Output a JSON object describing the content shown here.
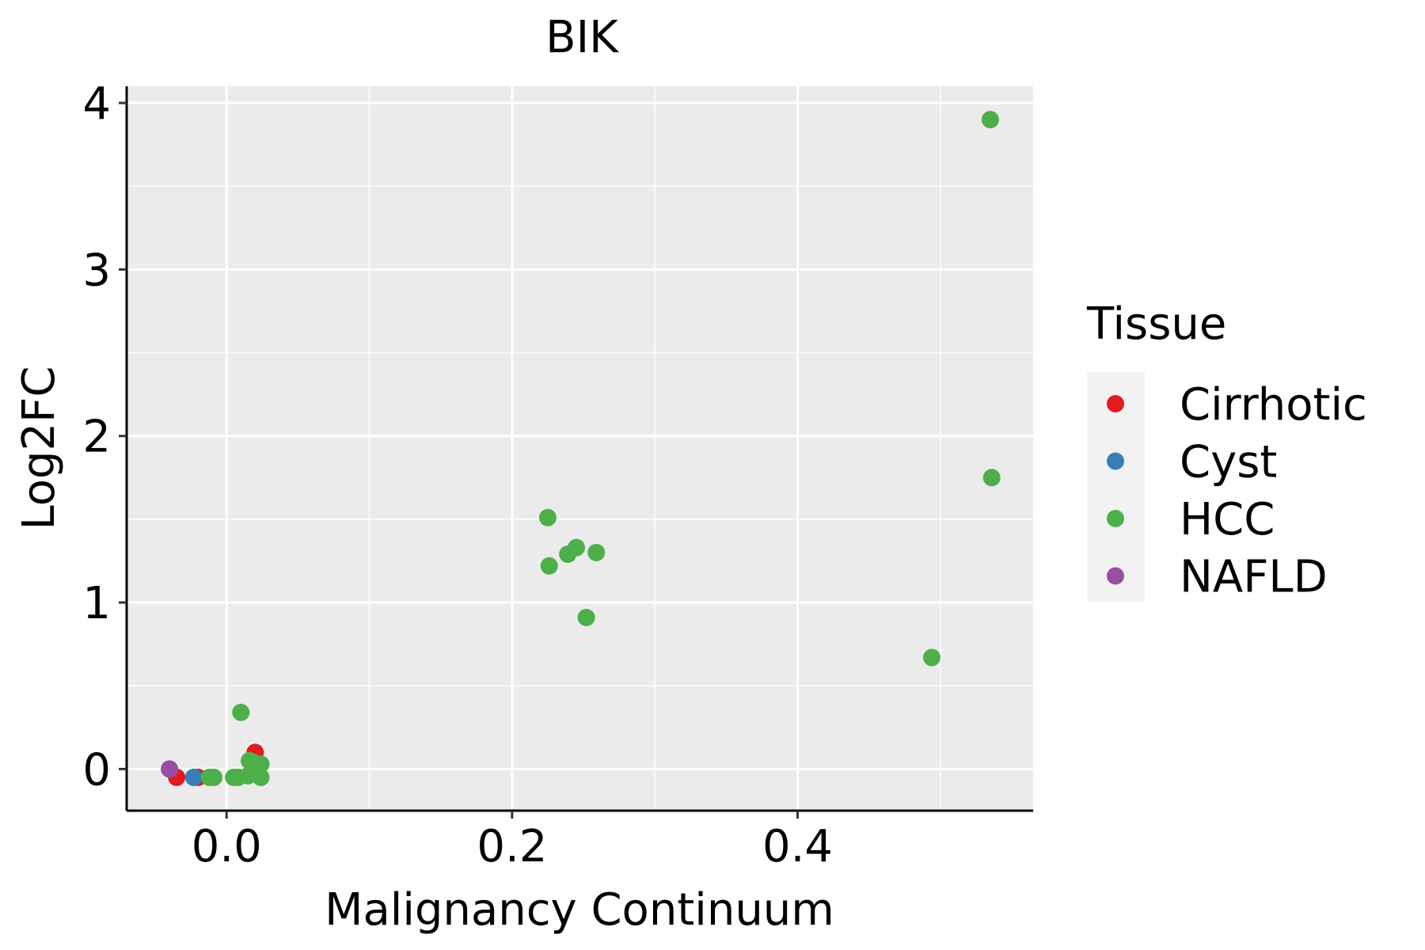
{
  "chart_data": {
    "type": "scatter",
    "title": "BIK",
    "xlabel": "Malignancy Continuum",
    "ylabel": "Log2FC",
    "xlim": [
      -0.07,
      0.565
    ],
    "ylim": [
      -0.25,
      4.1
    ],
    "x_ticks": [
      0.0,
      0.2,
      0.4
    ],
    "x_tick_labels": [
      "0.0",
      "0.2",
      "0.4"
    ],
    "y_ticks": [
      0,
      1,
      2,
      3,
      4
    ],
    "y_tick_labels": [
      "0",
      "1",
      "2",
      "3",
      "4"
    ],
    "grid": true,
    "legend": {
      "title": "Tissue",
      "placement": "right",
      "entries": [
        {
          "label": "Cirrhotic",
          "color": "#e41a1c"
        },
        {
          "label": "Cyst",
          "color": "#377eb8"
        },
        {
          "label": "HCC",
          "color": "#4daf4a"
        },
        {
          "label": "NAFLD",
          "color": "#984ea3"
        }
      ]
    },
    "series": [
      {
        "name": "Cirrhotic",
        "color": "#e41a1c",
        "points": [
          {
            "x": -0.035,
            "y": -0.05
          },
          {
            "x": -0.02,
            "y": -0.05
          },
          {
            "x": 0.02,
            "y": 0.1
          }
        ]
      },
      {
        "name": "Cyst",
        "color": "#377eb8",
        "points": [
          {
            "x": -0.023,
            "y": -0.05
          }
        ]
      },
      {
        "name": "HCC",
        "color": "#4daf4a",
        "points": [
          {
            "x": 0.535,
            "y": 3.9
          },
          {
            "x": 0.536,
            "y": 1.75
          },
          {
            "x": 0.494,
            "y": 0.67
          },
          {
            "x": 0.225,
            "y": 1.51
          },
          {
            "x": 0.226,
            "y": 1.22
          },
          {
            "x": 0.239,
            "y": 1.29
          },
          {
            "x": 0.245,
            "y": 1.33
          },
          {
            "x": 0.259,
            "y": 1.3
          },
          {
            "x": 0.252,
            "y": 0.91
          },
          {
            "x": 0.01,
            "y": 0.34
          },
          {
            "x": 0.016,
            "y": 0.05
          },
          {
            "x": 0.019,
            "y": 0.04
          },
          {
            "x": 0.024,
            "y": 0.03
          },
          {
            "x": 0.015,
            "y": -0.04
          },
          {
            "x": 0.024,
            "y": -0.05
          },
          {
            "x": 0.005,
            "y": -0.05
          },
          {
            "x": 0.008,
            "y": -0.05
          },
          {
            "x": -0.012,
            "y": -0.05
          },
          {
            "x": -0.009,
            "y": -0.05
          }
        ]
      },
      {
        "name": "NAFLD",
        "color": "#984ea3",
        "points": [
          {
            "x": -0.04,
            "y": 0.0
          }
        ]
      }
    ]
  }
}
